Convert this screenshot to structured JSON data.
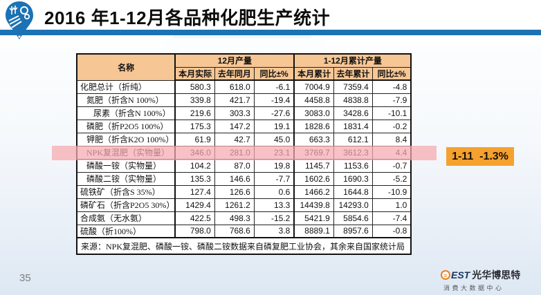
{
  "header": {
    "title": "2016 年1-12月各品种化肥生产统计"
  },
  "table": {
    "name_header": "名称",
    "col_groups": [
      {
        "label": "12月产量"
      },
      {
        "label": "1-12月累计产量"
      }
    ],
    "sub_headers": [
      "本月实际",
      "去年同月",
      "同比±%",
      "本月累计",
      "去年累计",
      "同比±%"
    ],
    "rows": [
      {
        "name": "化肥总计（折纯）",
        "indent": 0,
        "highlight": false,
        "values": [
          "580.3",
          "618.0",
          "-6.1",
          "7004.9",
          "7359.4",
          "-4.8"
        ]
      },
      {
        "name": "氮肥（折含N 100%）",
        "indent": 1,
        "highlight": false,
        "values": [
          "339.8",
          "421.7",
          "-19.4",
          "4458.8",
          "4838.8",
          "-7.9"
        ]
      },
      {
        "name": "尿素（折含N 100%）",
        "indent": 2,
        "highlight": false,
        "values": [
          "219.6",
          "303.3",
          "-27.6",
          "3083.0",
          "3428.6",
          "-10.1"
        ]
      },
      {
        "name": "磷肥（折P2O5 100%）",
        "indent": 1,
        "highlight": false,
        "values": [
          "175.3",
          "147.2",
          "19.1",
          "1828.6",
          "1831.4",
          "-0.2"
        ]
      },
      {
        "name": "钾肥（折含K2O 100%）",
        "indent": 1,
        "highlight": false,
        "values": [
          "61.9",
          "42.7",
          "45.0",
          "663.3",
          "612.1",
          "8.4"
        ]
      },
      {
        "name": "NPK复混肥（实物量）",
        "indent": 1,
        "highlight": true,
        "values": [
          "346.0",
          "281.0",
          "23.1",
          "3769.7",
          "3612.3",
          "4.4"
        ]
      },
      {
        "name": "磷酸一铵（实物量）",
        "indent": 1,
        "highlight": false,
        "values": [
          "104.2",
          "87.0",
          "19.8",
          "1145.7",
          "1153.6",
          "-0.7"
        ]
      },
      {
        "name": "磷酸二铵（实物量）",
        "indent": 1,
        "highlight": false,
        "values": [
          "135.3",
          "146.6",
          "-7.7",
          "1602.6",
          "1690.3",
          "-5.2"
        ]
      },
      {
        "name": "硫铁矿（折含S 35%）",
        "indent": 0,
        "highlight": false,
        "values": [
          "127.4",
          "126.6",
          "0.6",
          "1466.2",
          "1644.8",
          "-10.9"
        ]
      },
      {
        "name": "磷矿石（折含P2O5 30%）",
        "indent": 0,
        "highlight": false,
        "values": [
          "1429.4",
          "1261.2",
          "13.3",
          "14439.8",
          "14293.0",
          "1.0"
        ]
      },
      {
        "name": "合成氨（无水氨）",
        "indent": 0,
        "highlight": false,
        "values": [
          "422.5",
          "498.3",
          "-15.2",
          "5421.9",
          "5854.6",
          "-7.4"
        ]
      },
      {
        "name": "硫酸（折100%）",
        "indent": 0,
        "highlight": false,
        "values": [
          "798.0",
          "768.6",
          "3.8",
          "8889.1",
          "8957.6",
          "-0.8"
        ]
      }
    ],
    "source": "来源：NPK复混肥、磷酸一铵、磷酸二铵数据来自磷复肥工业协会，其余来自国家统计局"
  },
  "annotation": {
    "label": "1-11  -1.3%"
  },
  "footer": {
    "page_number": "35",
    "brand_est": "EST",
    "brand_name": "光华博思特",
    "brand_subtitle": "消费大数据中心"
  },
  "colors": {
    "accent_blue": "#1b72b4",
    "header_peach": "#f6c695",
    "highlight_pink": "#f5a9af",
    "annotation_orange": "#f5a12f"
  }
}
